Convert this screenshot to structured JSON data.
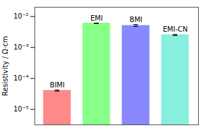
{
  "chart_data": {
    "type": "bar",
    "categories": [
      "BIMI",
      "EMI",
      "BMI",
      "EMI-CN"
    ],
    "values": [
      4e-05,
      0.006,
      0.005,
      0.0025
    ],
    "error_lower": [
      1e-06,
      7.5e-05,
      0.00025,
      6e-05
    ],
    "error_upper": [
      2e-06,
      0.00015,
      0.0005,
      0.00012
    ],
    "colors": [
      "#ff8888",
      "#88ff88",
      "#8888ff",
      "#88eedd"
    ],
    "ylabel": "Resistivity / Ω·cm",
    "log": "y",
    "ylim": [
      3.162277660168379e-06,
      0.0199526231496888
    ],
    "yticks": [
      {
        "value": 1e-05,
        "label": "10⁻⁵"
      },
      {
        "value": 0.0001,
        "label": "10⁻⁴"
      },
      {
        "value": 0.001,
        "label": "10⁻³"
      },
      {
        "value": 0.01,
        "label": "10⁻²"
      }
    ],
    "grid": false,
    "tick_labels": "y"
  }
}
